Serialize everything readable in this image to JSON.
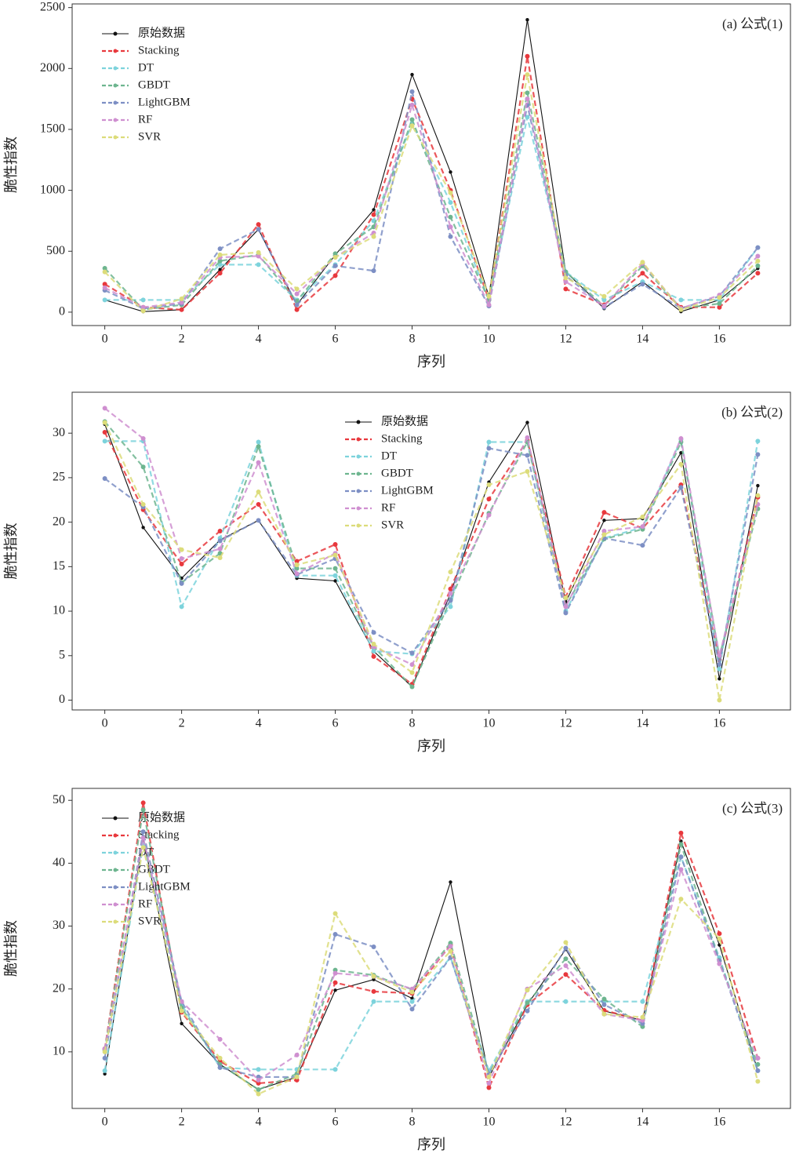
{
  "chart_data": [
    {
      "type": "line",
      "title": "(a)  公式(1)",
      "x_label": "序列",
      "y_label": "脆性指数",
      "legend": "upper left",
      "x": [
        0,
        1,
        2,
        3,
        4,
        5,
        6,
        7,
        8,
        9,
        10,
        11,
        12,
        13,
        14,
        15,
        16,
        17
      ],
      "xlim": [
        -0.85,
        17.85
      ],
      "xticks": [
        0,
        2,
        4,
        6,
        8,
        10,
        12,
        14,
        16
      ],
      "ylim": [
        -110,
        2530
      ],
      "yticks": [
        0,
        500,
        1000,
        1500,
        2000,
        2500
      ],
      "series": [
        {
          "name": "原始数据",
          "color": "#111111",
          "linestyle": "solid",
          "values": [
            100,
            5,
            20,
            350,
            680,
            60,
            470,
            840,
            1950,
            1150,
            130,
            2400,
            330,
            30,
            250,
            5,
            100,
            360
          ]
        },
        {
          "name": "Stacking",
          "color": "#e8383d",
          "linestyle": "dashed",
          "values": [
            230,
            40,
            20,
            320,
            720,
            20,
            300,
            800,
            1750,
            1000,
            100,
            2100,
            190,
            60,
            320,
            40,
            40,
            320
          ]
        },
        {
          "name": "DT",
          "color": "#7dd3dc",
          "linestyle": "dashed",
          "values": [
            100,
            100,
            100,
            390,
            390,
            100,
            390,
            750,
            1550,
            900,
            100,
            1600,
            330,
            100,
            250,
            100,
            100,
            530
          ]
        },
        {
          "name": "GBDT",
          "color": "#6db58f",
          "linestyle": "dashed",
          "values": [
            360,
            20,
            60,
            420,
            470,
            90,
            480,
            700,
            1580,
            780,
            100,
            1800,
            330,
            50,
            380,
            30,
            70,
            380
          ]
        },
        {
          "name": "LightGBM",
          "color": "#7d8fc4",
          "linestyle": "dashed",
          "values": [
            180,
            30,
            70,
            520,
            680,
            60,
            380,
            340,
            1810,
            620,
            50,
            1700,
            300,
            40,
            230,
            30,
            130,
            530
          ]
        },
        {
          "name": "RF",
          "color": "#cf8fd0",
          "linestyle": "dashed",
          "values": [
            200,
            40,
            80,
            450,
            460,
            150,
            450,
            650,
            1700,
            700,
            60,
            1750,
            250,
            50,
            400,
            30,
            140,
            460
          ]
        },
        {
          "name": "SVR",
          "color": "#dcdc7a",
          "linestyle": "dashed",
          "values": [
            330,
            10,
            110,
            470,
            490,
            190,
            450,
            620,
            1530,
            980,
            130,
            1950,
            280,
            130,
            410,
            20,
            120,
            420
          ]
        }
      ]
    },
    {
      "type": "line",
      "title": "(b)  公式(2)",
      "x_label": "序列",
      "y_label": "脆性指数",
      "legend": "upper center",
      "x": [
        0,
        1,
        2,
        3,
        4,
        5,
        6,
        7,
        8,
        9,
        10,
        11,
        12,
        13,
        14,
        15,
        16,
        17
      ],
      "xlim": [
        -0.85,
        17.85
      ],
      "xticks": [
        0,
        2,
        4,
        6,
        8,
        10,
        12,
        14,
        16
      ],
      "ylim": [
        -1.1,
        34.6
      ],
      "yticks": [
        0,
        5,
        10,
        15,
        20,
        25,
        30
      ],
      "series": [
        {
          "name": "原始数据",
          "color": "#111111",
          "linestyle": "solid",
          "values": [
            31,
            19.4,
            13.7,
            18,
            20.2,
            13.7,
            13.4,
            5.5,
            1.5,
            12,
            24.5,
            31.2,
            11,
            20.2,
            20.4,
            27.8,
            2.4,
            24.1
          ]
        },
        {
          "name": "Stacking",
          "color": "#e8383d",
          "linestyle": "dashed",
          "values": [
            30.1,
            21.4,
            15.3,
            19,
            22,
            15.6,
            17.5,
            4.9,
            1.8,
            12.5,
            22.6,
            29.2,
            11.6,
            21.1,
            19.3,
            24.2,
            4.5,
            22.8
          ]
        },
        {
          "name": "DT",
          "color": "#7dd3dc",
          "linestyle": "dashed",
          "values": [
            29.1,
            29.1,
            10.5,
            18.2,
            29,
            14,
            14,
            5.5,
            5.2,
            10.5,
            29,
            29,
            10,
            18.2,
            19.4,
            29.3,
            3.5,
            29.1
          ]
        },
        {
          "name": "GBDT",
          "color": "#6db58f",
          "linestyle": "dashed",
          "values": [
            31.3,
            26.2,
            13.2,
            16.5,
            28.5,
            14.8,
            14.8,
            6,
            1.5,
            11.3,
            21,
            29,
            10.6,
            18.1,
            19.2,
            29,
            4.9,
            21.5
          ]
        },
        {
          "name": "LightGBM",
          "color": "#7d8fc4",
          "linestyle": "dashed",
          "values": [
            24.9,
            21.7,
            13.1,
            17.9,
            20.2,
            14.1,
            15.9,
            7.6,
            5.3,
            11.2,
            28.3,
            27.5,
            9.8,
            18.2,
            17.4,
            23.9,
            4,
            27.6
          ]
        },
        {
          "name": "RF",
          "color": "#cf8fd0",
          "linestyle": "dashed",
          "values": [
            32.8,
            29.4,
            15.9,
            17,
            26.7,
            14.2,
            16.5,
            6,
            4,
            12,
            20.8,
            29.5,
            10.5,
            19,
            19.5,
            29.4,
            5,
            22
          ]
        },
        {
          "name": "SVR",
          "color": "#dcdc7a",
          "linestyle": "dashed",
          "values": [
            31.2,
            22,
            16.9,
            16,
            23.4,
            15.2,
            16.3,
            6.3,
            3.1,
            14.4,
            24.2,
            25.7,
            11.5,
            18.6,
            20.6,
            26.5,
            0,
            23
          ]
        }
      ]
    },
    {
      "type": "line",
      "title": "(c)  公式(3)",
      "x_label": "序列",
      "y_label": "脆性指数",
      "legend": "upper left",
      "x": [
        0,
        1,
        2,
        3,
        4,
        5,
        6,
        7,
        8,
        9,
        10,
        11,
        12,
        13,
        14,
        15,
        16,
        17
      ],
      "xlim": [
        -0.85,
        17.85
      ],
      "xticks": [
        0,
        2,
        4,
        6,
        8,
        10,
        12,
        14,
        16
      ],
      "ylim": [
        1.0,
        51.9
      ],
      "yticks": [
        10,
        20,
        30,
        40,
        50
      ],
      "series": [
        {
          "name": "原始数据",
          "color": "#111111",
          "linestyle": "solid",
          "values": [
            6.5,
            44,
            14.5,
            8,
            4,
            6,
            19.8,
            21.5,
            18.5,
            37,
            6,
            17.5,
            26.3,
            16.5,
            15,
            43.5,
            27,
            7
          ]
        },
        {
          "name": "Stacking",
          "color": "#e8383d",
          "linestyle": "dashed",
          "values": [
            10.5,
            49.6,
            16.3,
            8.5,
            5,
            5.5,
            21,
            19.6,
            19.3,
            27,
            4.3,
            17.5,
            22.3,
            16.6,
            15,
            44.8,
            28.8,
            9
          ]
        },
        {
          "name": "DT",
          "color": "#7dd3dc",
          "linestyle": "dashed",
          "values": [
            7,
            43,
            17.5,
            7.5,
            7.2,
            7.2,
            7.2,
            18,
            18,
            25,
            7,
            18,
            18,
            18,
            18,
            41,
            25,
            7
          ]
        },
        {
          "name": "GBDT",
          "color": "#6db58f",
          "linestyle": "dashed",
          "values": [
            10.3,
            48.5,
            17,
            8,
            4,
            6.5,
            23,
            22.2,
            19.9,
            27.3,
            6.5,
            17.8,
            24.8,
            18.4,
            14,
            43,
            24.5,
            8
          ]
        },
        {
          "name": "LightGBM",
          "color": "#7d8fc4",
          "linestyle": "dashed",
          "values": [
            9,
            45,
            18,
            7.5,
            6,
            6,
            28.7,
            26.7,
            16.8,
            25,
            6.5,
            16.5,
            26.5,
            17.5,
            14.5,
            41,
            24.5,
            7
          ]
        },
        {
          "name": "RF",
          "color": "#cf8fd0",
          "linestyle": "dashed",
          "values": [
            10.5,
            44,
            18,
            12,
            5.5,
            9.5,
            22.5,
            22,
            20,
            26.8,
            5,
            20,
            23.7,
            16,
            15,
            39,
            24,
            9
          ]
        },
        {
          "name": "SVR",
          "color": "#dcdc7a",
          "linestyle": "dashed",
          "values": [
            10,
            42.5,
            16.5,
            9,
            3.3,
            6,
            32,
            22,
            19.5,
            26,
            6,
            19.8,
            27.4,
            16,
            15.5,
            34.3,
            28,
            5.3
          ]
        }
      ]
    }
  ]
}
